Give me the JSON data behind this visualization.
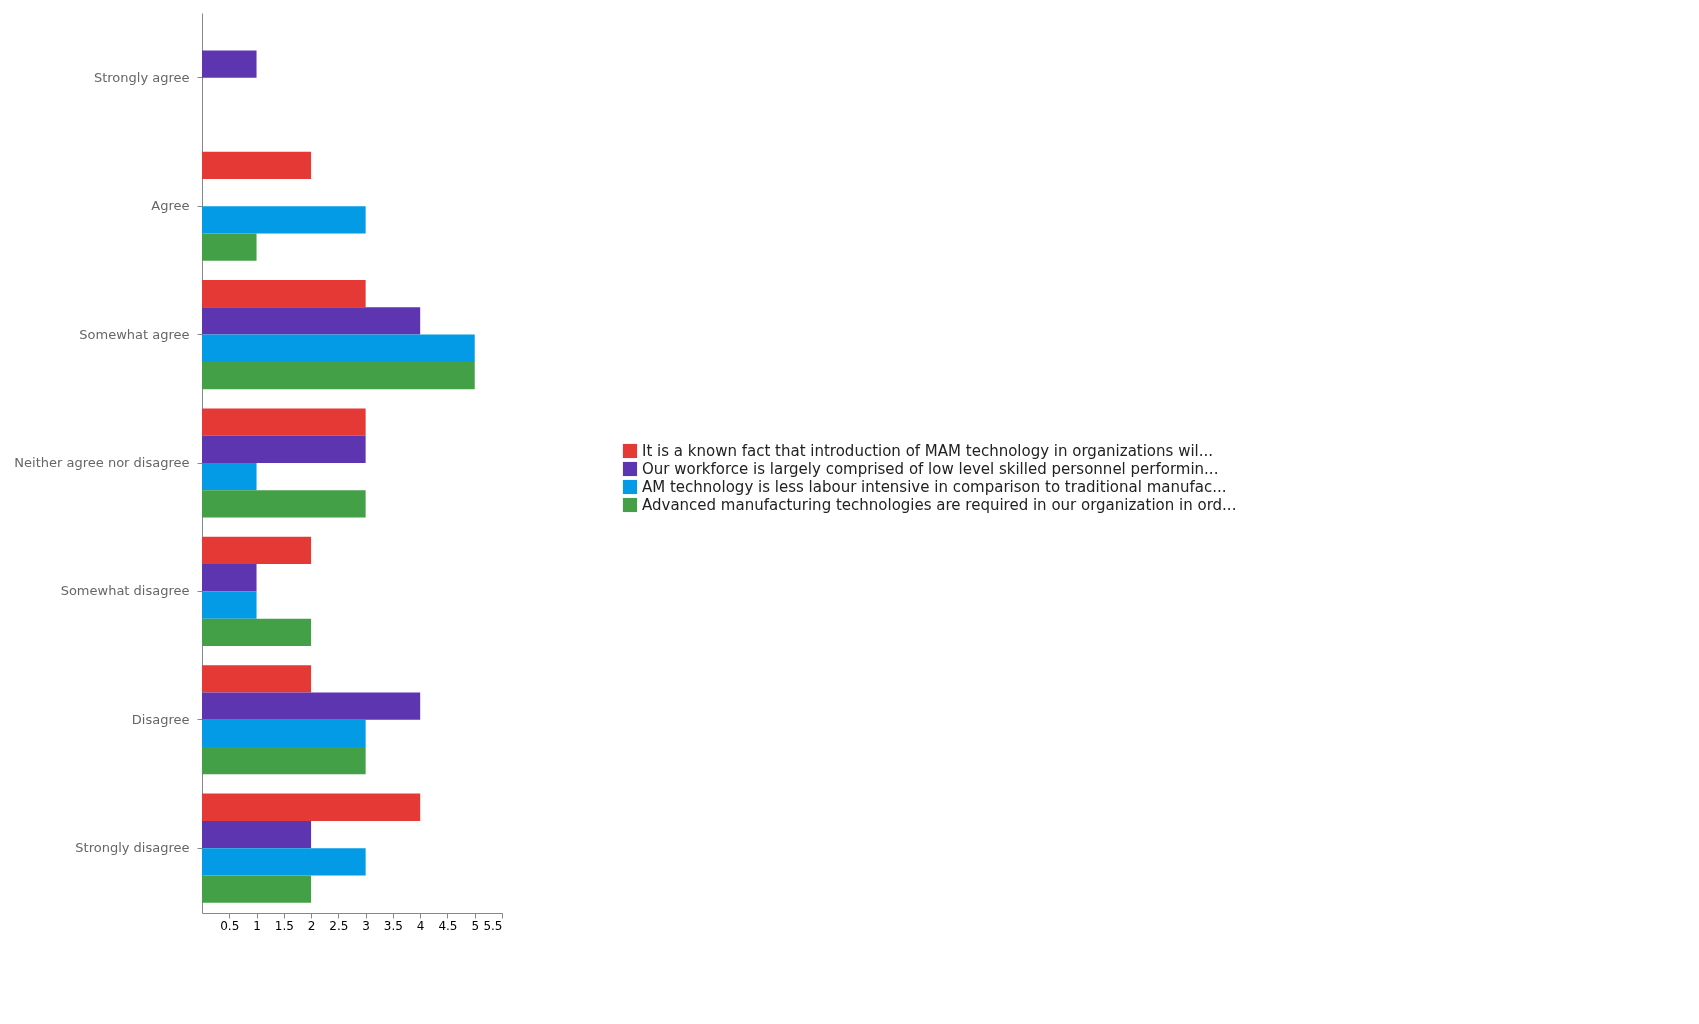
{
  "chart_data": {
    "type": "bar",
    "orientation": "horizontal",
    "categories": [
      "Strongly agree",
      "Agree",
      "Somewhat agree",
      "Neither agree nor disagree",
      "Somewhat disagree",
      "Disagree",
      "Strongly disagree"
    ],
    "series": [
      {
        "name": "It is a known fact that introduction of MAM technology in organizations wil...",
        "color": "#e53935",
        "values": [
          0,
          2,
          3,
          3,
          2,
          2,
          4
        ]
      },
      {
        "name": "Our workforce is largely comprised of low level skilled personnel performin...",
        "color": "#5e35b1",
        "values": [
          1,
          0,
          4,
          3,
          1,
          4,
          2
        ]
      },
      {
        "name": "AM technology is less labour intensive in comparison to traditional manufac...",
        "color": "#039be5",
        "values": [
          0,
          3,
          5,
          1,
          1,
          3,
          3
        ]
      },
      {
        "name": "Advanced manufacturing technologies are required in our organization in ord...",
        "color": "#43a047",
        "values": [
          0,
          1,
          5,
          3,
          2,
          3,
          2
        ]
      }
    ],
    "xlim": [
      0,
      5.5
    ],
    "xticks": [
      0.5,
      1,
      1.5,
      2,
      2.5,
      3,
      3.5,
      4,
      4.5,
      5,
      5.5
    ],
    "grid": false,
    "legend": "right"
  }
}
